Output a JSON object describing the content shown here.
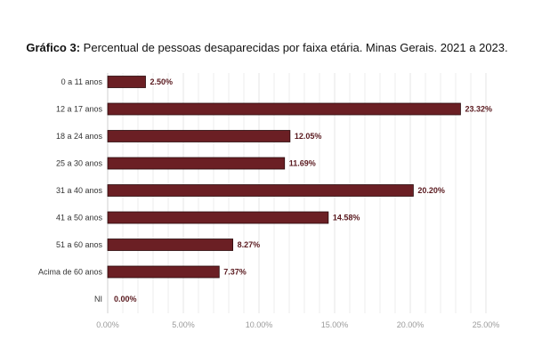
{
  "chart_data": {
    "type": "bar",
    "orientation": "horizontal",
    "title_prefix": "Gráfico 3:",
    "title": "Percentual de pessoas desaparecidas por faixa etária. Minas Gerais. 2021 a 2023.",
    "categories": [
      "0 a 11 anos",
      "12 a 17 anos",
      "18 a 24 anos",
      "25 a 30 anos",
      "31 a 40 anos",
      "41 a 50 anos",
      "51 a 60 anos",
      "Acima de 60 anos",
      "NI"
    ],
    "values": [
      2.5,
      23.32,
      12.05,
      11.69,
      20.2,
      14.58,
      8.27,
      7.37,
      0.0
    ],
    "value_labels": [
      "2.50%",
      "23.32%",
      "12.05%",
      "11.69%",
      "20.20%",
      "14.58%",
      "8.27%",
      "7.37%",
      "0.00%"
    ],
    "xlim": [
      0,
      25
    ],
    "xticks": [
      0,
      5,
      10,
      15,
      20,
      25
    ],
    "xtick_labels": [
      "0.00%",
      "5.00%",
      "10.00%",
      "15.00%",
      "20.00%",
      "25.00%"
    ],
    "grid": true,
    "legend": false,
    "colors": {
      "bar_fill": "#6b1f24",
      "bar_stroke": "#2a0a0c",
      "grid": "#e2e2e2",
      "data_label": "#5a1a1f"
    }
  }
}
